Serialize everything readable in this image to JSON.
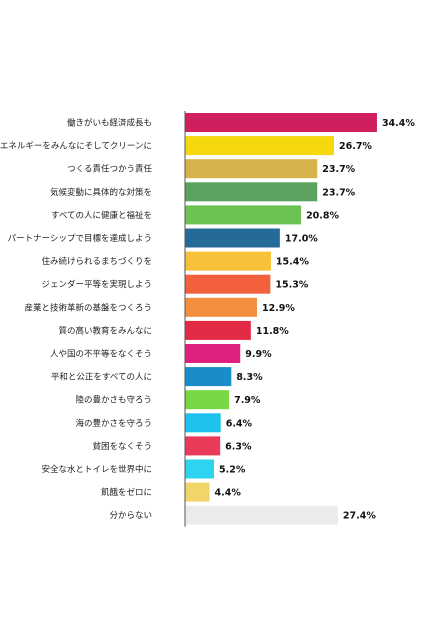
{
  "chart_data": {
    "type": "bar",
    "orientation": "horizontal",
    "categories": [
      "働きがいも経済成長も",
      "エネルギーをみんなにそしてクリーンに",
      "つくる責任つかう責任",
      "気候変動に具体的な対策を",
      "すべての人に健康と福祉を",
      "パートナーシップで目標を達成しよう",
      "住み続けられるまちづくりを",
      "ジェンダー平等を実現しよう",
      "産業と技術革新の基盤をつくろう",
      "質の高い教育をみんなに",
      "人や国の不平等をなくそう",
      "平和と公正をすべての人に",
      "陸の豊かさも守ろう",
      "海の豊かさを守ろう",
      "貧困をなくそう",
      "安全な水とトイレを世界中に",
      "飢餓をゼロに",
      "分からない"
    ],
    "values": [
      34.4,
      26.7,
      23.7,
      23.7,
      20.8,
      17.0,
      15.4,
      15.3,
      12.9,
      11.8,
      9.9,
      8.3,
      7.9,
      6.4,
      6.3,
      5.2,
      4.4,
      27.4
    ],
    "value_labels": [
      "34.4%",
      "26.7%",
      "23.7%",
      "23.7%",
      "20.8%",
      "17.0%",
      "15.4%",
      "15.3%",
      "12.9%",
      "11.8%",
      "9.9%",
      "8.3%",
      "7.9%",
      "6.4%",
      "6.3%",
      "5.2%",
      "4.4%",
      "27.4%"
    ],
    "colors": [
      "#d01f5e",
      "#f5d90e",
      "#d6b24a",
      "#5aa25e",
      "#6ec251",
      "#246b99",
      "#f7c23a",
      "#f2603c",
      "#f58d3f",
      "#e22a44",
      "#e0207d",
      "#1a8cc8",
      "#78d843",
      "#1fc2ec",
      "#ea3a59",
      "#2ed3ef",
      "#f2d568",
      "#ebebeb"
    ],
    "xlim": [
      0,
      40
    ],
    "grid": false,
    "legend": "none"
  }
}
